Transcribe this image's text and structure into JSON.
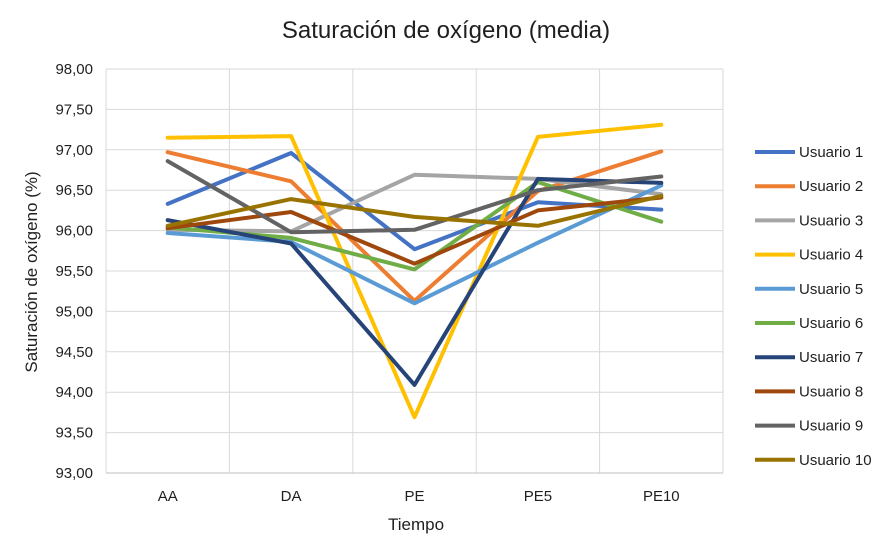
{
  "chart_data": {
    "type": "line",
    "title": "Saturación de oxígeno (media)",
    "xlabel": "Tiempo",
    "ylabel": "Saturación de oxígeno (%)",
    "categories": [
      "AA",
      "DA",
      "PE",
      "PE5",
      "PE10"
    ],
    "ylim": [
      93.0,
      98.0
    ],
    "yticks": [
      "98,00",
      "97,50",
      "97,00",
      "96,50",
      "96,00",
      "95,50",
      "95,00",
      "94,50",
      "94,00",
      "93,50",
      "93,00"
    ],
    "grid": true,
    "legend_position": "right",
    "series": [
      {
        "name": "Usuario 1",
        "color": "#4472C4",
        "values": [
          96.33,
          96.96,
          95.77,
          96.35,
          96.26
        ]
      },
      {
        "name": "Usuario 2",
        "color": "#ED7D31",
        "values": [
          96.97,
          96.61,
          95.13,
          96.49,
          96.98
        ]
      },
      {
        "name": "Usuario 3",
        "color": "#A5A5A5",
        "values": [
          96.01,
          95.99,
          96.69,
          96.64,
          96.45
        ]
      },
      {
        "name": "Usuario 4",
        "color": "#FFC000",
        "values": [
          97.15,
          97.17,
          93.69,
          97.16,
          97.31
        ]
      },
      {
        "name": "Usuario 5",
        "color": "#5B9BD5",
        "values": [
          95.97,
          95.86,
          95.1,
          95.85,
          96.56
        ]
      },
      {
        "name": "Usuario 6",
        "color": "#70AD47",
        "values": [
          96.04,
          95.91,
          95.52,
          96.6,
          96.11
        ]
      },
      {
        "name": "Usuario 7",
        "color": "#264478",
        "values": [
          96.13,
          95.84,
          94.09,
          96.64,
          96.59
        ]
      },
      {
        "name": "Usuario 8",
        "color": "#9E480E",
        "values": [
          96.03,
          96.23,
          95.59,
          96.25,
          96.41
        ]
      },
      {
        "name": "Usuario 9",
        "color": "#636363",
        "values": [
          96.86,
          95.98,
          96.01,
          96.5,
          96.67
        ]
      },
      {
        "name": "Usuario 10",
        "color": "#997300",
        "values": [
          96.06,
          96.39,
          96.17,
          96.06,
          96.43
        ]
      }
    ]
  }
}
